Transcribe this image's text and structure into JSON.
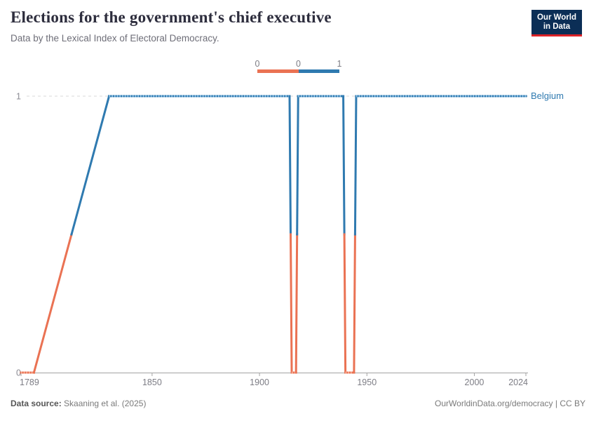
{
  "header": {
    "title": "Elections for the government's chief executive",
    "subtitle": "Data by the Lexical Index of Electoral Democracy."
  },
  "logo": {
    "line1": "Our World",
    "line2": "in Data"
  },
  "legend": {
    "tick_labels": [
      "0",
      "0",
      "1"
    ],
    "colors": {
      "zero": "#EA7253",
      "one": "#2F7AB0"
    }
  },
  "chart_data": {
    "type": "line",
    "title": "Elections for the government's chief executive",
    "subtitle": "Data by the Lexical Index of Electoral Democracy.",
    "entity": "Belgium",
    "series": [
      {
        "name": "Belgium",
        "points": [
          [
            1789,
            0
          ],
          [
            1795,
            0
          ],
          [
            1830,
            1
          ],
          [
            1914,
            1
          ],
          [
            1915,
            0
          ],
          [
            1917,
            0
          ],
          [
            1918,
            1
          ],
          [
            1939,
            1
          ],
          [
            1940,
            0
          ],
          [
            1944,
            0
          ],
          [
            1945,
            1
          ],
          [
            2024,
            1
          ]
        ]
      }
    ],
    "x_ticks": [
      1789,
      1850,
      1900,
      1950,
      2000,
      2024
    ],
    "y_ticks": [
      1,
      0
    ],
    "x_range": [
      1789,
      2024
    ],
    "y_range": [
      0,
      1
    ],
    "gridline_at_y": 1,
    "value_colors": {
      "0": "#EA7253",
      "1": "#2F7AB0"
    },
    "value_colors_light": {
      "0": "#F5AE97",
      "1": "#8FC1E4"
    },
    "legend_position": "top-center"
  },
  "footer": {
    "source_label": "Data source:",
    "source_value": " Skaaning et al. (2025)",
    "credit": "OurWorldinData.org/democracy | CC BY"
  }
}
